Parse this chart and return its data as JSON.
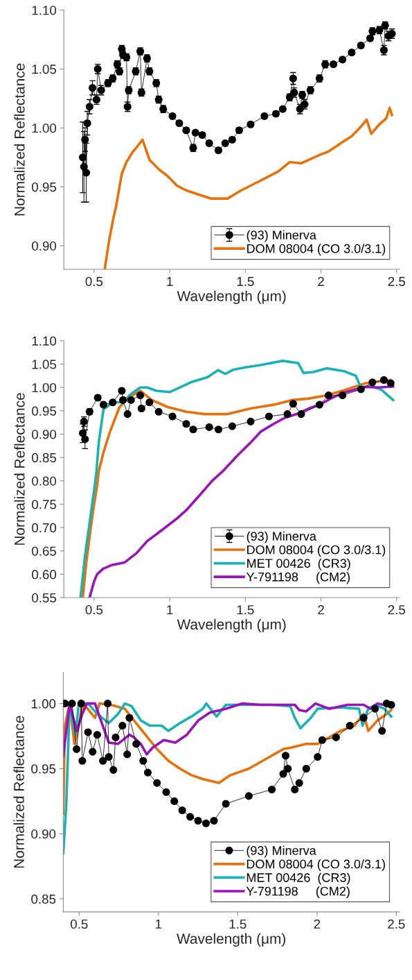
{
  "chart_data": [
    {
      "type": "line",
      "xlabel": "Wavelength (μm)",
      "ylabel": "Normalized Reflectance",
      "xlim": [
        0.3,
        2.52
      ],
      "ylim": [
        0.88,
        1.1
      ],
      "xticks": [
        0.5,
        1,
        1.5,
        2,
        2.5
      ],
      "yticks": [
        {
          "value": 0.9,
          "label": "0.90"
        },
        {
          "value": 0.95,
          "label": "0.95"
        },
        {
          "value": 1.0,
          "label": "1.00"
        },
        {
          "value": 1.05,
          "label": "1.05"
        },
        {
          "value": 1.1,
          "label": "1.10"
        }
      ],
      "legend": "bottom right",
      "grid": false,
      "series": [
        {
          "name": "(93) Minerva",
          "color": "#000000",
          "marker": "circle",
          "x": [
            0.425,
            0.433,
            0.44,
            0.448,
            0.455,
            0.47,
            0.489,
            0.516,
            0.524,
            0.547,
            0.592,
            0.623,
            0.653,
            0.668,
            0.683,
            0.691,
            0.714,
            0.721,
            0.729,
            0.775,
            0.805,
            0.813,
            0.85,
            0.866,
            0.911,
            0.927,
            0.957,
            1.018,
            1.063,
            1.109,
            1.155,
            1.17,
            1.215,
            1.261,
            1.322,
            1.367,
            1.413,
            1.459,
            1.535,
            1.626,
            1.702,
            1.747,
            1.793,
            1.816,
            1.823,
            1.861,
            1.876,
            1.892,
            1.93,
            1.99,
            2.028,
            2.082,
            2.142,
            2.203,
            2.264,
            2.325,
            2.34,
            2.386,
            2.416,
            2.424,
            2.446,
            2.469
          ],
          "values": [
            0.975,
            0.967,
            0.99,
            0.962,
            1.004,
            1.018,
            1.034,
            1.024,
            1.05,
            1.032,
            1.038,
            1.042,
            1.054,
            1.048,
            1.067,
            1.062,
            1.06,
            1.018,
            1.032,
            1.048,
            1.065,
            1.03,
            1.059,
            1.048,
            1.038,
            1.024,
            1.016,
            1.01,
            1.004,
            0.998,
            0.983,
            0.996,
            0.994,
            0.987,
            0.981,
            0.987,
            0.99,
            0.998,
            1.003,
            1.01,
            1.012,
            1.016,
            1.026,
            1.042,
            1.03,
            1.016,
            1.028,
            1.02,
            1.032,
            1.042,
            1.054,
            1.054,
            1.058,
            1.064,
            1.07,
            1.076,
            1.082,
            1.083,
            1.066,
            1.087,
            1.078,
            1.08
          ],
          "errors": [
            0.03,
            0.03,
            0.01,
            0.025,
            0.01,
            0.006,
            0.006,
            0.004,
            0.004,
            0.004,
            0.003,
            0.003,
            0.003,
            0.003,
            0.003,
            0.003,
            0.003,
            0.004,
            0.003,
            0.003,
            0.003,
            0.003,
            0.003,
            0.003,
            0.003,
            0.003,
            0.003,
            0.002,
            0.002,
            0.002,
            0.003,
            0.002,
            0.002,
            0.002,
            0.002,
            0.002,
            0.002,
            0.002,
            0.002,
            0.002,
            0.002,
            0.002,
            0.003,
            0.005,
            0.004,
            0.004,
            0.003,
            0.004,
            0.003,
            0.003,
            0.003,
            0.002,
            0.002,
            0.002,
            0.002,
            0.002,
            0.003,
            0.003,
            0.004,
            0.003,
            0.004,
            0.004
          ]
        },
        {
          "name": "DOM 08004 (CO 3.0/3.1)",
          "color": "#e8710a",
          "marker": "none",
          "x": [
            0.57,
            0.6,
            0.63,
            0.645,
            0.683,
            0.714,
            0.752,
            0.79,
            0.82,
            0.866,
            0.927,
            0.987,
            1.048,
            1.109,
            1.2,
            1.276,
            1.383,
            1.459,
            1.535,
            1.626,
            1.717,
            1.793,
            1.869,
            1.99,
            2.05,
            2.142,
            2.203,
            2.264,
            2.302,
            2.332,
            2.386,
            2.431,
            2.454,
            2.469
          ],
          "values": [
            0.88,
            0.905,
            0.925,
            0.933,
            0.961,
            0.971,
            0.979,
            0.985,
            0.99,
            0.973,
            0.965,
            0.959,
            0.951,
            0.947,
            0.943,
            0.94,
            0.94,
            0.946,
            0.951,
            0.957,
            0.963,
            0.971,
            0.97,
            0.977,
            0.98,
            0.988,
            0.993,
            1.001,
            1.007,
            0.995,
            1.003,
            1.008,
            1.017,
            1.011
          ]
        }
      ]
    },
    {
      "type": "line",
      "xlabel": "Wavelength (μm)",
      "ylabel": "Normalized Reflectance",
      "xlim": [
        0.3,
        2.52
      ],
      "ylim": [
        0.55,
        1.1
      ],
      "xticks": [
        0.5,
        1,
        1.5,
        2,
        2.5
      ],
      "yticks": [
        {
          "value": 0.55,
          "label": "0.55"
        },
        {
          "value": 0.6,
          "label": "0.60"
        },
        {
          "value": 0.65,
          "label": "0.65"
        },
        {
          "value": 0.7,
          "label": "0.70"
        },
        {
          "value": 0.75,
          "label": "0.75"
        },
        {
          "value": 0.8,
          "label": "0.80"
        },
        {
          "value": 0.85,
          "label": "0.85"
        },
        {
          "value": 0.9,
          "label": "0.90"
        },
        {
          "value": 0.95,
          "label": "0.95"
        },
        {
          "value": 1.0,
          "label": "1.00"
        },
        {
          "value": 1.05,
          "label": "1.05"
        },
        {
          "value": 1.1,
          "label": "1.10"
        }
      ],
      "legend": "bottom right",
      "grid": false,
      "series": [
        {
          "name": "(93) Minerva",
          "color": "#000000",
          "marker": "circle",
          "x": [
            0.425,
            0.433,
            0.44,
            0.47,
            0.524,
            0.562,
            0.623,
            0.683,
            0.691,
            0.721,
            0.744,
            0.805,
            0.813,
            0.866,
            0.927,
            1.018,
            1.109,
            1.155,
            1.261,
            1.322,
            1.413,
            1.535,
            1.656,
            1.778,
            1.816,
            1.869,
            1.99,
            2.05,
            2.142,
            2.264,
            2.34,
            2.416,
            2.461
          ],
          "values": [
            0.902,
            0.927,
            0.889,
            0.948,
            0.978,
            0.963,
            0.968,
            0.993,
            0.973,
            0.943,
            0.973,
            0.983,
            0.955,
            0.968,
            0.948,
            0.938,
            0.922,
            0.91,
            0.915,
            0.91,
            0.917,
            0.927,
            0.938,
            0.943,
            0.965,
            0.943,
            0.963,
            0.983,
            0.983,
            0.996,
            1.011,
            1.016,
            1.009
          ],
          "errors": [
            0.02,
            0.01,
            0.02,
            0.006,
            0.005,
            0.004,
            0.003,
            0.003,
            0.003,
            0.003,
            0.003,
            0.003,
            0.003,
            0.003,
            0.002,
            0.002,
            0.002,
            0.002,
            0.002,
            0.002,
            0.002,
            0.002,
            0.002,
            0.002,
            0.004,
            0.003,
            0.002,
            0.002,
            0.002,
            0.002,
            0.003,
            0.003,
            0.003
          ]
        },
        {
          "name": "DOM 08004 (CO 3.0/3.1)",
          "color": "#e8710a",
          "marker": "none",
          "x": [
            0.425,
            0.45,
            0.478,
            0.5,
            0.52,
            0.531,
            0.562,
            0.607,
            0.668,
            0.729,
            0.805,
            0.881,
            0.987,
            1.109,
            1.23,
            1.383,
            1.535,
            1.687,
            1.808,
            1.914,
            2.036,
            2.142,
            2.294,
            2.416,
            2.461
          ],
          "values": [
            0.55,
            0.63,
            0.7,
            0.75,
            0.79,
            0.821,
            0.861,
            0.907,
            0.958,
            0.978,
            0.993,
            0.973,
            0.958,
            0.948,
            0.943,
            0.943,
            0.955,
            0.963,
            0.973,
            0.976,
            0.983,
            0.993,
            1.009,
            1.014,
            1.016
          ]
        },
        {
          "name": "MET 00426  (CR3)",
          "color": "#17b3b8",
          "marker": "none",
          "x": [
            0.41,
            0.44,
            0.47,
            0.5,
            0.516,
            0.53,
            0.562,
            0.623,
            0.69,
            0.74,
            0.805,
            0.85,
            0.911,
            1.0,
            1.14,
            1.25,
            1.32,
            1.367,
            1.42,
            1.5,
            1.6,
            1.747,
            1.85,
            1.884,
            1.95,
            2.036,
            2.15,
            2.23,
            2.264,
            2.33,
            2.4,
            2.477
          ],
          "values": [
            0.55,
            0.64,
            0.71,
            0.78,
            0.821,
            0.88,
            0.953,
            0.968,
            0.968,
            0.985,
            1.0,
            1.0,
            0.993,
            0.99,
            1.011,
            1.022,
            1.037,
            1.029,
            1.038,
            1.043,
            1.048,
            1.057,
            1.052,
            1.031,
            1.033,
            1.041,
            1.035,
            1.025,
            1.0,
            1.003,
            0.995,
            0.973
          ]
        },
        {
          "name": "Y-791198     (CM2)",
          "color": "#9a11bd",
          "marker": "none",
          "x": [
            0.47,
            0.5,
            0.52,
            0.56,
            0.62,
            0.7,
            0.78,
            0.851,
            0.95,
            1.05,
            1.109,
            1.2,
            1.28,
            1.352,
            1.45,
            1.535,
            1.6,
            1.687,
            1.76,
            1.839,
            1.92,
            1.99,
            2.07,
            2.142,
            2.22,
            2.294,
            2.38,
            2.477
          ],
          "values": [
            0.55,
            0.585,
            0.6,
            0.612,
            0.62,
            0.625,
            0.645,
            0.671,
            0.695,
            0.72,
            0.737,
            0.77,
            0.8,
            0.821,
            0.855,
            0.882,
            0.905,
            0.922,
            0.935,
            0.943,
            0.955,
            0.963,
            0.977,
            0.988,
            0.995,
            1.001,
            1.0,
            1.002
          ]
        }
      ]
    },
    {
      "type": "line",
      "xlabel": "Wavelength (μm)",
      "ylabel": "Normalized Reflectance",
      "xlim": [
        0.4,
        2.52
      ],
      "ylim": [
        0.84,
        1.024
      ],
      "xticks": [
        0.5,
        1,
        1.5,
        2,
        2.5
      ],
      "yticks": [
        {
          "value": 0.85,
          "label": "0.85"
        },
        {
          "value": 0.9,
          "label": "0.90"
        },
        {
          "value": 0.95,
          "label": "0.95"
        },
        {
          "value": 1.0,
          "label": "1.00"
        }
      ],
      "legend": "bottom right",
      "grid": false,
      "series": [
        {
          "name": "(93) Minerva",
          "color": "#000000",
          "marker": "circle",
          "x": [
            0.41,
            0.455,
            0.484,
            0.513,
            0.52,
            0.556,
            0.585,
            0.614,
            0.65,
            0.68,
            0.687,
            0.716,
            0.73,
            0.773,
            0.803,
            0.817,
            0.86,
            0.904,
            0.933,
            0.991,
            1.049,
            1.1,
            1.15,
            1.2,
            1.25,
            1.3,
            1.35,
            1.425,
            1.57,
            1.715,
            1.787,
            1.802,
            1.816,
            1.86,
            1.888,
            1.932,
            2.004,
            2.033,
            2.12,
            2.207,
            2.294,
            2.366,
            2.41,
            2.439,
            2.468
          ],
          "values": [
            1.0,
            1.0,
            0.965,
            1.0,
            0.956,
            0.978,
            0.963,
            0.976,
            0.956,
            1.0,
            0.959,
            0.949,
            0.974,
            0.983,
            0.961,
            0.989,
            0.969,
            0.956,
            0.947,
            0.939,
            0.932,
            0.925,
            0.918,
            0.913,
            0.91,
            0.908,
            0.91,
            0.923,
            0.929,
            0.934,
            0.946,
            0.96,
            0.95,
            0.934,
            0.939,
            0.95,
            0.959,
            0.972,
            0.974,
            0.983,
            0.989,
            0.996,
            0.979,
            1.0,
            0.999
          ]
        },
        {
          "name": "DOM 08004 (CO 3.0/3.1)",
          "color": "#e8710a",
          "marker": "none",
          "x": [
            0.4,
            0.41,
            0.44,
            0.47,
            0.498,
            0.527,
            0.6,
            0.629,
            0.7,
            0.788,
            0.846,
            0.918,
            0.991,
            1.063,
            1.136,
            1.208,
            1.28,
            1.382,
            1.454,
            1.57,
            1.686,
            1.787,
            1.831,
            1.932,
            2.004,
            2.149,
            2.236,
            2.294,
            2.323,
            2.381,
            2.439,
            2.468
          ],
          "values": [
            0.915,
            0.983,
            1.0,
            0.969,
            0.983,
            1.0,
            0.989,
            1.0,
            0.999,
            0.996,
            0.987,
            0.976,
            0.965,
            0.956,
            0.95,
            0.945,
            0.942,
            0.939,
            0.945,
            0.95,
            0.958,
            0.965,
            0.966,
            0.969,
            0.969,
            0.979,
            0.983,
            0.992,
            0.979,
            0.987,
            0.992,
            0.995
          ]
        },
        {
          "name": "MET 00426  (CR3)",
          "color": "#17b3b8",
          "marker": "none",
          "x": [
            0.4,
            0.419,
            0.44,
            0.477,
            0.498,
            0.556,
            0.614,
            0.687,
            0.745,
            0.788,
            0.831,
            0.889,
            0.947,
            1.02,
            1.063,
            1.136,
            1.208,
            1.28,
            1.302,
            1.367,
            1.425,
            1.57,
            1.715,
            1.831,
            1.86,
            1.896,
            1.961,
            2.004,
            2.149,
            2.265,
            2.287,
            2.323,
            2.366,
            2.424,
            2.468
          ],
          "values": [
            0.885,
            0.923,
            1.0,
            0.976,
            1.0,
            1.0,
            0.992,
            0.985,
            0.992,
            1.0,
            0.998,
            0.987,
            0.983,
            0.983,
            0.979,
            0.985,
            0.99,
            0.996,
            1.0,
            0.99,
            0.999,
            0.999,
            0.999,
            0.998,
            0.989,
            0.981,
            0.989,
            0.996,
            0.997,
            0.996,
            0.983,
            0.996,
            0.999,
            0.996,
            0.99
          ]
        },
        {
          "name": "Y-791198     (CM2)",
          "color": "#9a11bd",
          "marker": "none",
          "x": [
            0.4,
            0.419,
            0.44,
            0.484,
            0.52,
            0.549,
            0.6,
            0.643,
            0.687,
            0.745,
            0.817,
            0.846,
            0.889,
            0.926,
            0.962,
            1.034,
            1.107,
            1.179,
            1.251,
            1.324,
            1.425,
            1.527,
            1.643,
            1.787,
            1.86,
            1.888,
            1.932,
            1.99,
            2.077,
            2.193,
            2.294,
            2.337,
            2.381,
            2.468
          ],
          "values": [
            0.96,
            0.979,
            1.0,
            0.979,
            0.992,
            1.0,
            1.0,
            0.985,
            0.97,
            0.969,
            0.976,
            0.974,
            0.969,
            0.961,
            0.966,
            0.972,
            0.97,
            0.976,
            0.987,
            0.993,
            0.996,
            1.0,
            0.999,
            0.999,
            0.999,
            0.995,
            0.994,
            1.0,
            0.996,
            0.999,
            0.999,
            0.996,
            1.0,
            0.998
          ]
        }
      ]
    }
  ]
}
